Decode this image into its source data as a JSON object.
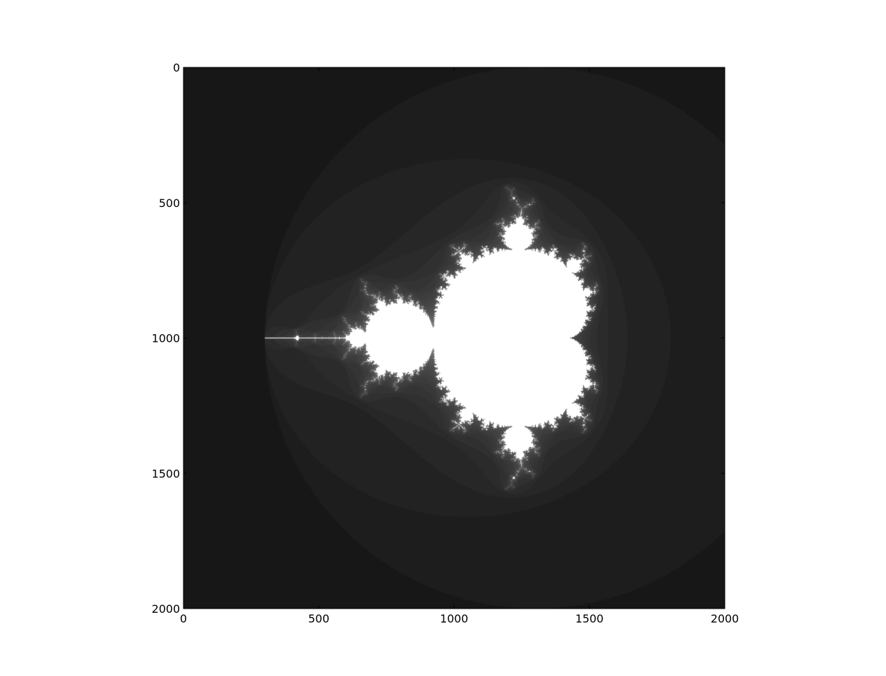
{
  "chart_data": {
    "type": "heatmap",
    "title": "",
    "xlabel": "",
    "ylabel": "",
    "colormap": "gray",
    "image_size": [
      2000,
      2000
    ],
    "xlim": [
      0,
      2000
    ],
    "ylim": [
      2000,
      0
    ],
    "x_ticks": [
      0,
      500,
      1000,
      1500,
      2000
    ],
    "y_ticks": [
      0,
      500,
      1000,
      1500,
      2000
    ],
    "x_tick_labels": [
      "0",
      "500",
      "1000",
      "1500",
      "2000"
    ],
    "y_tick_labels": [
      "0",
      "500",
      "1000",
      "1500",
      "2000"
    ],
    "complex_region": {
      "re_min": -2.6,
      "re_max": 1.4,
      "im_min": -2.0,
      "im_max": 2.0
    },
    "max_iterations": 40,
    "grid": false
  },
  "colors": {
    "background": "#ffffff",
    "axes_frame": "#000000",
    "inside_set": "#ffffff",
    "escape_fast": "#000000"
  }
}
